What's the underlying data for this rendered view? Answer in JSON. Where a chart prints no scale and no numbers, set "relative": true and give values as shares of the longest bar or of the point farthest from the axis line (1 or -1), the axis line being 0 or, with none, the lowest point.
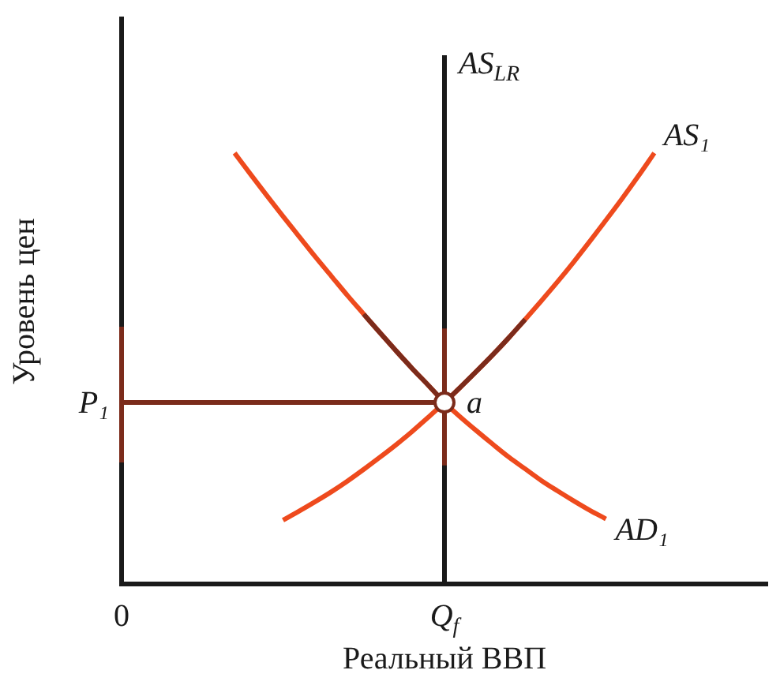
{
  "chart_data": {
    "type": "line",
    "relative": true,
    "xlabel": "Реальный ВВП",
    "ylabel": "Уровень цен",
    "tick_labels": "x",
    "marker": "none",
    "categories": [
      "0",
      null,
      null,
      null,
      null,
      null,
      null,
      null,
      null,
      null,
      null,
      null,
      null,
      null,
      null,
      null,
      null,
      null,
      null,
      null,
      "Q$_{f}$",
      null,
      null,
      null,
      null,
      null,
      null,
      null,
      null,
      null,
      null,
      null,
      null,
      null,
      null,
      null,
      null,
      null,
      null,
      null,
      null
    ],
    "ref_lines": [
      {
        "axis": "x",
        "value": "Q$_{f}$",
        "label": "AS$_{LR}$",
        "color": "#1a1a1a"
      }
    ],
    "annotations": [
      {
        "text": "a",
        "x": "Q$_{f}$",
        "y": 0.421
      },
      {
        "text": "P₁",
        "x": "0",
        "y": 0.421
      }
    ],
    "series": [
      {
        "name": "AS₁",
        "color": "#ee4a1d",
        "values": [
          null,
          null,
          null,
          null,
          null,
          null,
          null,
          null,
          null,
          null,
          0.148,
          0.169,
          0.191,
          0.214,
          0.239,
          0.266,
          0.294,
          0.323,
          0.354,
          0.387,
          0.421,
          0.457,
          0.494,
          0.532,
          0.572,
          0.614,
          0.657,
          0.701,
          0.747,
          0.795,
          0.844,
          0.894,
          0.946,
          1,
          null,
          null,
          null,
          null,
          null,
          null,
          null
        ]
      },
      {
        "name": "AD₁",
        "color": "#ee4a1d",
        "values": [
          null,
          null,
          null,
          null,
          null,
          null,
          null,
          1,
          0.95,
          0.901,
          0.853,
          0.806,
          0.759,
          0.714,
          0.669,
          0.626,
          0.583,
          0.541,
          0.5,
          0.461,
          0.421,
          0.387,
          0.355,
          0.324,
          0.294,
          0.267,
          0.24,
          0.216,
          0.193,
          0.171,
          0.151,
          null,
          null,
          null,
          null,
          null,
          null,
          null,
          null,
          null,
          null
        ]
      },
      {
        "color": "#7b2b1b",
        "x": [
          "0",
          "Q$_{f}$"
        ],
        "values": [
          0.421,
          0.421
        ]
      },
      {
        "color": "#7b2b1b",
        "x": [
          "0",
          "0"
        ],
        "values": [
          0.282,
          0.597
        ]
      },
      {
        "color": "#7b2b1b",
        "x": [
          "Q$_{f}$",
          "Q$_{f}$"
        ],
        "values": [
          0.275,
          0.593
        ]
      },
      {
        "color": "#7b2b1b",
        "values": [
          null,
          null,
          null,
          null,
          null,
          null,
          null,
          null,
          null,
          null,
          null,
          null,
          null,
          null,
          null,
          null,
          null,
          null,
          null,
          null,
          0.421,
          0.457,
          0.494,
          0.532,
          0.572,
          0.614,
          null,
          null,
          null,
          null,
          null,
          null,
          null,
          null,
          null,
          null,
          null,
          null,
          null,
          null,
          null
        ]
      },
      {
        "color": "#7b2b1b",
        "values": [
          null,
          null,
          null,
          null,
          null,
          null,
          null,
          null,
          null,
          null,
          null,
          null,
          null,
          null,
          null,
          0.626,
          0.583,
          0.541,
          0.5,
          0.461,
          0.421,
          null,
          null,
          null,
          null,
          null,
          null,
          null,
          null,
          null,
          null,
          null,
          null,
          null,
          null,
          null,
          null,
          null,
          null,
          null,
          null
        ]
      },
      {
        "type": "scatter",
        "marker": "circle",
        "color": "#7b2b1b",
        "x": [
          "Q$_{f}$"
        ],
        "values": [
          0.421
        ]
      }
    ]
  }
}
